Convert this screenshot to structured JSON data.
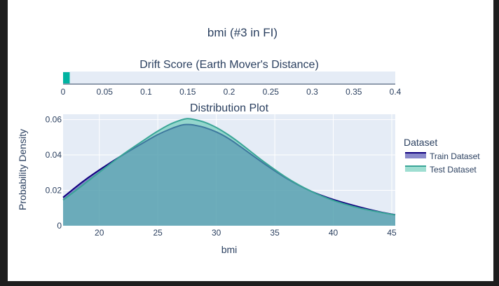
{
  "figure": {
    "title": "bmi (#3 in FI)",
    "background": "#ffffff",
    "plot_bg": "#e5ecf6"
  },
  "legend": {
    "title": "Dataset",
    "placement": "right"
  },
  "chart_data": [
    {
      "type": "bar",
      "orientation": "horizontal",
      "title": "Drift Score (Earth Mover's Distance)",
      "value": 0.008,
      "xlim": [
        0,
        0.4
      ],
      "xticks": [
        "0",
        "0.05",
        "0.1",
        "0.15",
        "0.2",
        "0.25",
        "0.3",
        "0.35",
        "0.4"
      ],
      "color": "#00b3a1"
    },
    {
      "type": "area",
      "title": "Distribution Plot",
      "xlabel": "bmi",
      "ylabel": "Probability Density",
      "xlim": [
        16.9,
        45.3
      ],
      "ylim": [
        0,
        0.063
      ],
      "xticks": [
        20,
        25,
        30,
        35,
        40,
        45
      ],
      "yticks": [
        0,
        0.02,
        0.04,
        0.06
      ],
      "ytick_labels": [
        "0",
        "0.02",
        "0.04",
        "0.06"
      ],
      "grid": true,
      "series": [
        {
          "name": "Train Dataset",
          "color": "#10007f",
          "fill": "#3b3ba6",
          "fill_opacity": 0.6,
          "x": [
            16.9,
            18.5,
            20,
            22,
            24,
            25,
            26,
            27,
            27.5,
            28,
            29,
            30,
            31,
            32,
            34,
            36,
            38,
            40,
            42,
            44,
            45.3
          ],
          "y": [
            0.016,
            0.0245,
            0.0315,
            0.04,
            0.0478,
            0.0515,
            0.0545,
            0.0568,
            0.0572,
            0.057,
            0.0555,
            0.053,
            0.0495,
            0.045,
            0.0355,
            0.0268,
            0.0198,
            0.0148,
            0.011,
            0.0078,
            0.0062
          ]
        },
        {
          "name": "Test Dataset",
          "color": "#3aa597",
          "fill": "#5ec8b2",
          "fill_opacity": 0.6,
          "x": [
            16.9,
            18.5,
            20,
            22,
            24,
            25,
            26,
            27,
            27.5,
            28,
            29,
            30,
            31,
            32,
            34,
            36,
            38,
            40,
            42,
            44,
            45.3
          ],
          "y": [
            0.0145,
            0.0225,
            0.0302,
            0.0402,
            0.0492,
            0.0535,
            0.0572,
            0.0598,
            0.0605,
            0.0602,
            0.0585,
            0.0555,
            0.0515,
            0.0468,
            0.0365,
            0.0272,
            0.0198,
            0.0143,
            0.0104,
            0.0076,
            0.0061
          ]
        }
      ]
    }
  ]
}
